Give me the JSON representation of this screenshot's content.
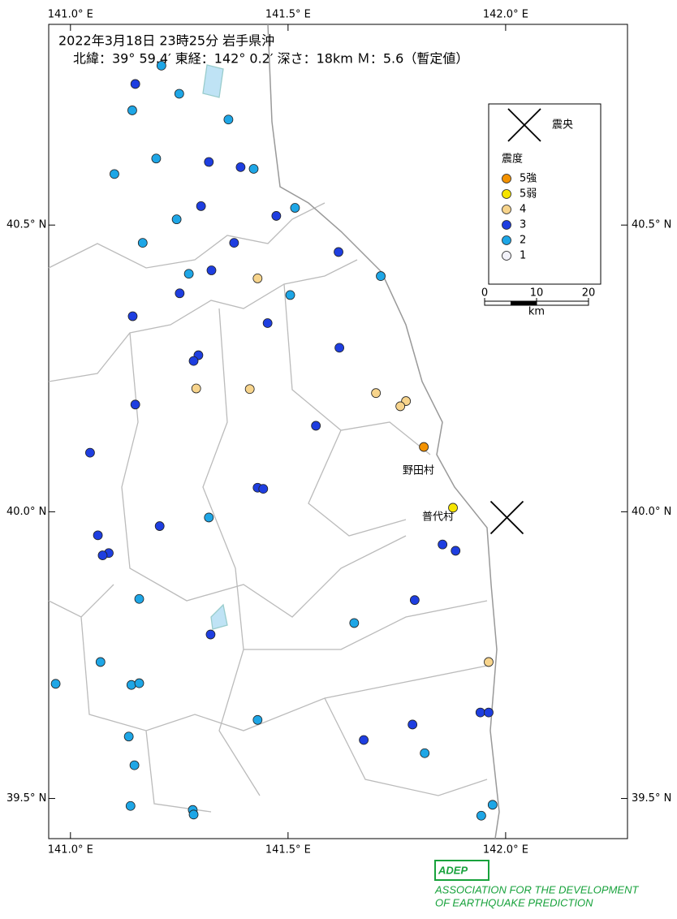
{
  "chart_data": {
    "type": "scatter",
    "title": "2022年3月18日 23時25分 岩手県沖",
    "subtitle": "北緯：39° 59.4′ 東経：142° 0.2′ 深さ：18km Ｍ：5.6（暫定値）",
    "xlim": [
      140.95,
      142.28
    ],
    "ylim": [
      39.43,
      40.85
    ],
    "xticks": [
      {
        "value": 141.0,
        "label": "141.0° E"
      },
      {
        "value": 141.5,
        "label": "141.5° E"
      },
      {
        "value": 142.0,
        "label": "142.0° E"
      }
    ],
    "yticks": [
      {
        "value": 39.5,
        "label": "39.5° N"
      },
      {
        "value": 40.0,
        "label": "40.0° N"
      },
      {
        "value": 40.5,
        "label": "40.5° N"
      }
    ],
    "epicenter": {
      "x": 142.003,
      "y": 39.99
    },
    "epicenter_label": "震央",
    "legend_title": "震度",
    "series": [
      {
        "name": "5強",
        "color": "#f39200",
        "x": [
          141.812
        ],
        "y": [
          40.113
        ]
      },
      {
        "name": "5弱",
        "color": "#f5e400",
        "x": [
          141.879
        ],
        "y": [
          40.007
        ]
      },
      {
        "name": "4",
        "color": "#f7d48c",
        "x": [
          141.43,
          141.289,
          141.412,
          141.702,
          141.771,
          141.758,
          141.961
        ],
        "y": [
          40.407,
          40.215,
          40.214,
          40.207,
          40.193,
          40.184,
          39.738
        ]
      },
      {
        "name": "3",
        "color": "#1e3ee0",
        "x": [
          141.149,
          141.318,
          141.391,
          141.3,
          141.473,
          141.376,
          141.616,
          141.324,
          141.251,
          141.143,
          141.453,
          141.618,
          141.294,
          141.283,
          141.149,
          141.564,
          141.045,
          141.43,
          141.443,
          141.205,
          141.063,
          141.088,
          141.074,
          141.855,
          141.885,
          141.791,
          141.322,
          141.942,
          141.961,
          141.786,
          141.674
        ],
        "y": [
          40.746,
          40.61,
          40.601,
          40.533,
          40.516,
          40.469,
          40.453,
          40.421,
          40.381,
          40.341,
          40.329,
          40.286,
          40.273,
          40.263,
          40.187,
          40.15,
          40.103,
          40.042,
          40.04,
          39.975,
          39.959,
          39.928,
          39.924,
          39.943,
          39.932,
          39.846,
          39.786,
          39.65,
          39.65,
          39.629,
          39.602
        ]
      },
      {
        "name": "2",
        "color": "#1ea6e6",
        "x": [
          141.209,
          141.25,
          141.142,
          141.363,
          141.197,
          141.101,
          141.421,
          141.244,
          141.516,
          141.166,
          141.272,
          141.713,
          141.505,
          141.318,
          141.158,
          141.652,
          141.069,
          140.966,
          141.14,
          141.158,
          141.43,
          141.134,
          141.814,
          141.147,
          141.138,
          141.281,
          141.283,
          141.97,
          141.944
        ],
        "y": [
          40.778,
          40.729,
          40.7,
          40.684,
          40.616,
          40.589,
          40.598,
          40.51,
          40.53,
          40.469,
          40.415,
          40.411,
          40.378,
          39.99,
          39.848,
          39.806,
          39.738,
          39.7,
          39.698,
          39.701,
          39.637,
          39.608,
          39.579,
          39.558,
          39.487,
          39.48,
          39.472,
          39.489,
          39.47
        ]
      },
      {
        "name": "1",
        "color": "#f2f2fa",
        "x": [],
        "y": []
      }
    ],
    "places": [
      "野田村",
      "普代村"
    ],
    "scale": {
      "ticks": [
        0,
        10,
        20
      ],
      "unit": "km"
    },
    "logo": {
      "name": "ADEP",
      "line1": "ASSOCIATION FOR THE DEVELOPMENT",
      "line2": "OF EARTHQUAKE PREDICTION"
    }
  }
}
